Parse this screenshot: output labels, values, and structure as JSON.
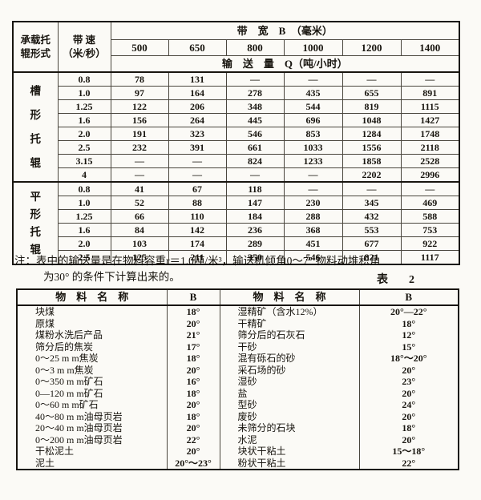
{
  "theme": {
    "paper": "#fbfaf6",
    "ink": "#18150f",
    "rule": "#4a463d"
  },
  "table1": {
    "corner_header": "承载托\n辊形式",
    "speed_header": "带 速\n（米/秒）",
    "width_header": "带　宽　B　（毫米）",
    "widths": [
      "500",
      "650",
      "800",
      "1000",
      "1200",
      "1400"
    ],
    "capacity_header": "输　送　量　Q（吨/小时）",
    "groups": [
      {
        "label": "槽形托辊",
        "rows": [
          {
            "speed": "0.8",
            "values": [
              "78",
              "131",
              "—",
              "—",
              "—",
              "—"
            ]
          },
          {
            "speed": "1.0",
            "values": [
              "97",
              "164",
              "278",
              "435",
              "655",
              "891"
            ]
          },
          {
            "speed": "1.25",
            "values": [
              "122",
              "206",
              "348",
              "544",
              "819",
              "1115"
            ]
          },
          {
            "speed": "1.6",
            "values": [
              "156",
              "264",
              "445",
              "696",
              "1048",
              "1427"
            ]
          },
          {
            "speed": "2.0",
            "values": [
              "191",
              "323",
              "546",
              "853",
              "1284",
              "1748"
            ]
          },
          {
            "speed": "2.5",
            "values": [
              "232",
              "391",
              "661",
              "1033",
              "1556",
              "2118"
            ]
          },
          {
            "speed": "3.15",
            "values": [
              "—",
              "—",
              "824",
              "1233",
              "1858",
              "2528"
            ]
          },
          {
            "speed": "4",
            "values": [
              "—",
              "—",
              "—",
              "—",
              "2202",
              "2996"
            ]
          }
        ]
      },
      {
        "label": "平形托辊",
        "rows": [
          {
            "speed": "0.8",
            "values": [
              "41",
              "67",
              "118",
              "—",
              "—",
              "—"
            ]
          },
          {
            "speed": "1.0",
            "values": [
              "52",
              "88",
              "147",
              "230",
              "345",
              "469"
            ]
          },
          {
            "speed": "1.25",
            "values": [
              "66",
              "110",
              "184",
              "288",
              "432",
              "588"
            ]
          },
          {
            "speed": "1.6",
            "values": [
              "84",
              "142",
              "236",
              "368",
              "553",
              "753"
            ]
          },
          {
            "speed": "2.0",
            "values": [
              "103",
              "174",
              "289",
              "451",
              "677",
              "922"
            ]
          },
          {
            "speed": "2.5",
            "values": [
              "125",
              "211",
              "350",
              "546",
              "821",
              "1117"
            ]
          }
        ]
      }
    ]
  },
  "note": {
    "line1": "注：表中的输送量是在物料容重r＝1.0吨/米³，输送机倾角0～7° 物料动堆积角",
    "line2": "为30° 的条件下计算出来的。"
  },
  "table2_caption": "表　2",
  "table2": {
    "headers": [
      "物　料　名　称",
      "B",
      "物　料　名　称",
      "B"
    ],
    "rows": [
      {
        "left_name": "块煤",
        "left_b": "18°",
        "right_name": "湿精矿（含水12%）",
        "right_b": "20°—22°"
      },
      {
        "left_name": "原煤",
        "left_b": "20°",
        "right_name": "干精矿",
        "right_b": "18°"
      },
      {
        "left_name": "煤粉水洗后产品",
        "left_b": "21°",
        "right_name": "筛分后的石灰石",
        "right_b": "12°"
      },
      {
        "left_name": "筛分后的焦炭",
        "left_b": "17°",
        "right_name": "干砂",
        "right_b": "15°"
      },
      {
        "left_name": "0～25 m m焦炭",
        "left_b": "18°",
        "right_name": "混有砾石的砂",
        "right_b": "18°～20°"
      },
      {
        "left_name": "0～3 m m焦炭",
        "left_b": "20°",
        "right_name": "采石场的砂",
        "right_b": "20°"
      },
      {
        "left_name": "0～350 m m矿石",
        "left_b": "16°",
        "right_name": "湿砂",
        "right_b": "23°"
      },
      {
        "left_name": "0—120 m m矿石",
        "left_b": "18°",
        "right_name": "盐",
        "right_b": "20°"
      },
      {
        "left_name": "0～60 m m矿石",
        "left_b": "20°",
        "right_name": "型砂",
        "right_b": "24°"
      },
      {
        "left_name": "40～80 m m油母页岩",
        "left_b": "18°",
        "right_name": "废砂",
        "right_b": "20°"
      },
      {
        "left_name": "20～40 m m油母页岩",
        "left_b": "20°",
        "right_name": "未筛分的石块",
        "right_b": "18°"
      },
      {
        "left_name": "0～200 m m油母页岩",
        "left_b": "22°",
        "right_name": "水泥",
        "right_b": "20°"
      },
      {
        "left_name": "干松泥土",
        "left_b": "20°",
        "right_name": "块状干粘土",
        "right_b": "15～18°"
      },
      {
        "left_name": "泥土",
        "left_b": "20°～23°",
        "right_name": "粉状干粘土",
        "right_b": "22°"
      }
    ]
  }
}
